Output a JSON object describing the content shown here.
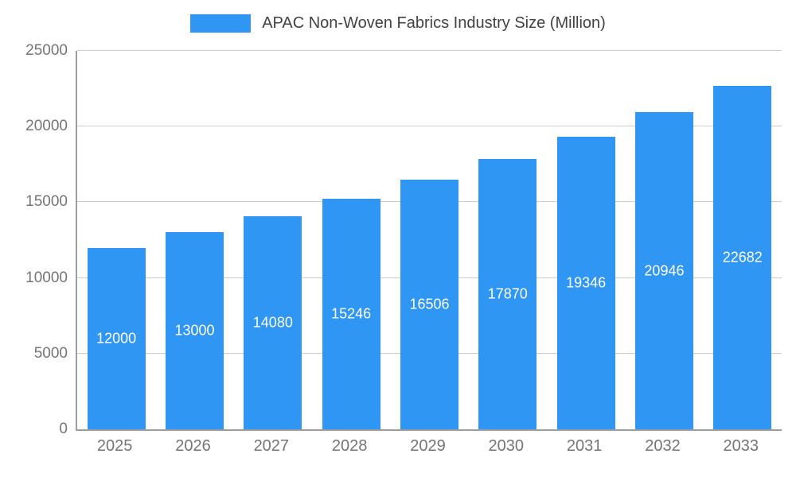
{
  "chart_data": {
    "type": "bar",
    "title": "APAC Non-Woven Fabrics Industry Size (Million)",
    "categories": [
      "2025",
      "2026",
      "2027",
      "2028",
      "2029",
      "2030",
      "2031",
      "2032",
      "2033"
    ],
    "values": [
      12000,
      13000,
      14080,
      15246,
      16506,
      17870,
      19346,
      20946,
      22682
    ],
    "value_labels": [
      "12000",
      "13000",
      "14080",
      "15246",
      "16506",
      "17870",
      "19346",
      "20946",
      "22682"
    ],
    "xlabel": "",
    "ylabel": "",
    "ylim": [
      0,
      25000
    ],
    "yticks": [
      0,
      5000,
      10000,
      15000,
      20000,
      25000
    ],
    "ytick_labels": [
      "0",
      "5000",
      "10000",
      "15000",
      "20000",
      "25000"
    ],
    "grid": true,
    "legend_position": "top-center",
    "colors": {
      "bar": "#2f96f3",
      "bar_label_text": "#ffffff",
      "axis_text": "#757575",
      "title_text": "#424242",
      "gridline": "#cccccc",
      "axis_line": "#9e9e9e",
      "background": "#ffffff"
    }
  }
}
